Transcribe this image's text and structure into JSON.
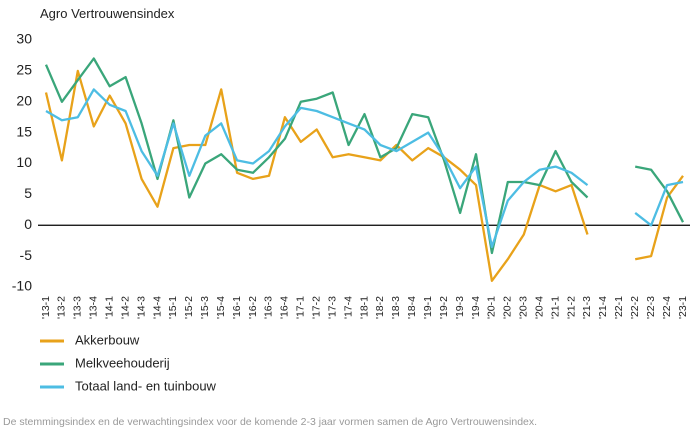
{
  "chart_data": {
    "type": "line",
    "title": "Agro Vertrouwensindex",
    "note": "De stemmingsindex en de verwachtingsindex voor de komende 2-3 jaar vormen samen de Agro Vertrouwensindex.",
    "categories": [
      "'13-1",
      "'13-2",
      "'13-3",
      "'13-4",
      "'14-1",
      "'14-2",
      "'14-3",
      "'14-4",
      "'15-1",
      "'15-2",
      "'15-3",
      "'15-4",
      "'16-1",
      "'16-2",
      "'16-3",
      "'16-4",
      "'17-1",
      "'17-2",
      "'17-3",
      "'17-4",
      "'18-1",
      "'18-2",
      "'18-3",
      "'18-4",
      "'19-1",
      "'19-2",
      "'19-3",
      "'19-4",
      "'20-1",
      "'20-2",
      "'20-3",
      "'20-4",
      "'21-1",
      "'21-2",
      "'21-3",
      "'21-4",
      "'22-1",
      "'22-2",
      "'22-3",
      "'22-4",
      "'23-1"
    ],
    "series": [
      {
        "name": "Akkerbouw",
        "color": "#e8a21a",
        "values": [
          21.5,
          10.5,
          25,
          16,
          21,
          16.5,
          7.5,
          3,
          12.5,
          13,
          13,
          22,
          8.5,
          7.5,
          8,
          17.5,
          13.5,
          15.5,
          11,
          11.5,
          11,
          10.5,
          13,
          10.5,
          12.5,
          11,
          9,
          6.5,
          -9,
          -5.5,
          -1.5,
          6.5,
          5.5,
          6.5,
          -1.5,
          null,
          null,
          -5.5,
          -5,
          4.5,
          8
        ]
      },
      {
        "name": "Melkveehouderij",
        "color": "#3aa67a",
        "values": [
          26,
          20,
          23.5,
          27,
          22.5,
          24,
          16.5,
          7.5,
          17,
          4.5,
          10,
          11.5,
          9,
          8.5,
          11,
          14,
          20,
          20.5,
          21.5,
          13,
          18,
          11,
          12.5,
          18,
          17.5,
          10.5,
          2,
          11.5,
          -4.5,
          7,
          7,
          6.5,
          12,
          7,
          4.5,
          null,
          null,
          9.5,
          9,
          5.5,
          0.5
        ]
      },
      {
        "name": "Totaal land- en tuinbouw",
        "color": "#4dbde3",
        "values": [
          18.5,
          17,
          17.5,
          22,
          19.5,
          18.5,
          12,
          8,
          16.5,
          8,
          14.5,
          16.5,
          10.5,
          10,
          12,
          16,
          19,
          18.5,
          17.5,
          16.5,
          15.5,
          13,
          12,
          13.5,
          15,
          11,
          6,
          9.5,
          -3.5,
          4,
          7,
          9,
          9.5,
          8.5,
          6.5,
          null,
          null,
          2,
          0,
          6.5,
          7
        ]
      }
    ],
    "ylim": [
      -10,
      30
    ],
    "yticks": [
      -10,
      -5,
      0,
      5,
      10,
      15,
      20,
      25,
      30
    ]
  }
}
